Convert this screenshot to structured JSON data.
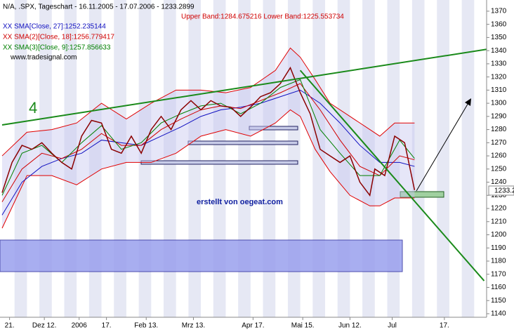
{
  "chart_data": {
    "type": "line",
    "title": "N/A, .SPX, Tageschart - 16.11.2005 - 17.07.2006 - 1233.2899",
    "source": "www.tradesignal.com",
    "annotation_number": "4",
    "watermark": "erstellt von oegeat.com",
    "last_price_label": "1233.2",
    "xlim": [
      0,
      195
    ],
    "ylim": [
      1137.3,
      1378.5
    ],
    "yticks": [
      1140,
      1150,
      1160,
      1170,
      1180,
      1190,
      1200,
      1210,
      1220,
      1230,
      1240,
      1250,
      1260,
      1270,
      1280,
      1290,
      1300,
      1310,
      1320,
      1330,
      1340,
      1350,
      1360,
      1370
    ],
    "xticks": [
      {
        "value": 3,
        "label": "21."
      },
      {
        "value": 17,
        "label": "Dez 12."
      },
      {
        "value": 31,
        "label": "2006"
      },
      {
        "value": 42,
        "label": "17."
      },
      {
        "value": 58,
        "label": "Feb 13."
      },
      {
        "value": 77,
        "label": "Mrz 13."
      },
      {
        "value": 101,
        "label": "Apr 17."
      },
      {
        "value": 121,
        "label": "Mai 15."
      },
      {
        "value": 140,
        "label": "Jun 12."
      },
      {
        "value": 157,
        "label": "Jul"
      },
      {
        "value": 178,
        "label": "17."
      }
    ],
    "price": {
      "color": "#8b0000",
      "x": [
        0,
        4,
        8,
        12,
        16,
        20,
        24,
        28,
        32,
        36,
        40,
        44,
        48,
        52,
        56,
        60,
        64,
        68,
        72,
        76,
        80,
        84,
        88,
        92,
        96,
        100,
        104,
        108,
        112,
        116,
        120,
        124,
        128,
        132,
        136,
        140,
        144,
        148,
        150,
        154,
        158,
        162,
        166
      ],
      "values": [
        1232,
        1255,
        1268,
        1265,
        1270,
        1262,
        1255,
        1250,
        1275,
        1287,
        1285,
        1265,
        1262,
        1275,
        1262,
        1280,
        1290,
        1280,
        1295,
        1302,
        1295,
        1302,
        1298,
        1297,
        1290,
        1297,
        1305,
        1308,
        1315,
        1327,
        1308,
        1292,
        1265,
        1260,
        1255,
        1260,
        1240,
        1230,
        1250,
        1245,
        1275,
        1270,
        1234
      ]
    },
    "bands": {
      "label": "Upper Band:1284.675216 Lower Band:1225.553734",
      "color": "#e00000",
      "x": [
        0,
        10,
        20,
        30,
        40,
        50,
        60,
        70,
        80,
        90,
        100,
        110,
        116,
        120,
        126,
        132,
        140,
        148,
        152,
        158,
        166
      ],
      "upper": [
        1260,
        1278,
        1280,
        1285,
        1300,
        1288,
        1300,
        1310,
        1310,
        1308,
        1312,
        1325,
        1342,
        1335,
        1318,
        1300,
        1290,
        1280,
        1275,
        1285,
        1285
      ],
      "lower": [
        1205,
        1245,
        1245,
        1238,
        1250,
        1255,
        1255,
        1262,
        1275,
        1280,
        1275,
        1285,
        1295,
        1290,
        1265,
        1248,
        1230,
        1222,
        1222,
        1228,
        1228
      ]
    },
    "series": [
      {
        "name": "XX SMA[Close, 27]:1252.235144",
        "color": "#1010c0",
        "x": [
          0,
          8,
          16,
          24,
          32,
          40,
          48,
          56,
          64,
          72,
          80,
          88,
          96,
          104,
          112,
          120,
          128,
          136,
          144,
          152,
          160,
          166
        ],
        "values": [
          1215,
          1240,
          1252,
          1258,
          1262,
          1272,
          1270,
          1268,
          1275,
          1282,
          1290,
          1295,
          1297,
          1300,
          1305,
          1310,
          1300,
          1285,
          1268,
          1255,
          1255,
          1252
        ]
      },
      {
        "name": "XX SMA(2)[Close, 18]:1256.779417",
        "color": "#d00000",
        "x": [
          0,
          8,
          16,
          24,
          32,
          40,
          48,
          56,
          64,
          72,
          80,
          88,
          96,
          104,
          112,
          120,
          128,
          136,
          144,
          152,
          160,
          166
        ],
        "values": [
          1225,
          1250,
          1262,
          1258,
          1265,
          1277,
          1268,
          1268,
          1280,
          1288,
          1295,
          1298,
          1296,
          1302,
          1308,
          1315,
          1295,
          1272,
          1252,
          1245,
          1260,
          1257
        ]
      },
      {
        "name": "XX SMA(3)[Close, 9]:1257.856633",
        "color": "#008000",
        "x": [
          0,
          8,
          16,
          24,
          32,
          40,
          48,
          56,
          64,
          72,
          80,
          88,
          96,
          104,
          112,
          120,
          128,
          136,
          144,
          152,
          160,
          166
        ],
        "values": [
          1230,
          1262,
          1268,
          1255,
          1270,
          1283,
          1265,
          1270,
          1285,
          1292,
          1298,
          1300,
          1292,
          1300,
          1312,
          1318,
          1280,
          1262,
          1245,
          1245,
          1272,
          1258
        ]
      }
    ],
    "trendlines": [
      {
        "color": "#1a8a1a",
        "x": [
          0,
          195
        ],
        "values": [
          1283.5,
          1341
        ]
      },
      {
        "color": "#1a8a1a",
        "x": [
          120,
          194
        ],
        "values": [
          1325,
          1165
        ]
      }
    ]
  }
}
